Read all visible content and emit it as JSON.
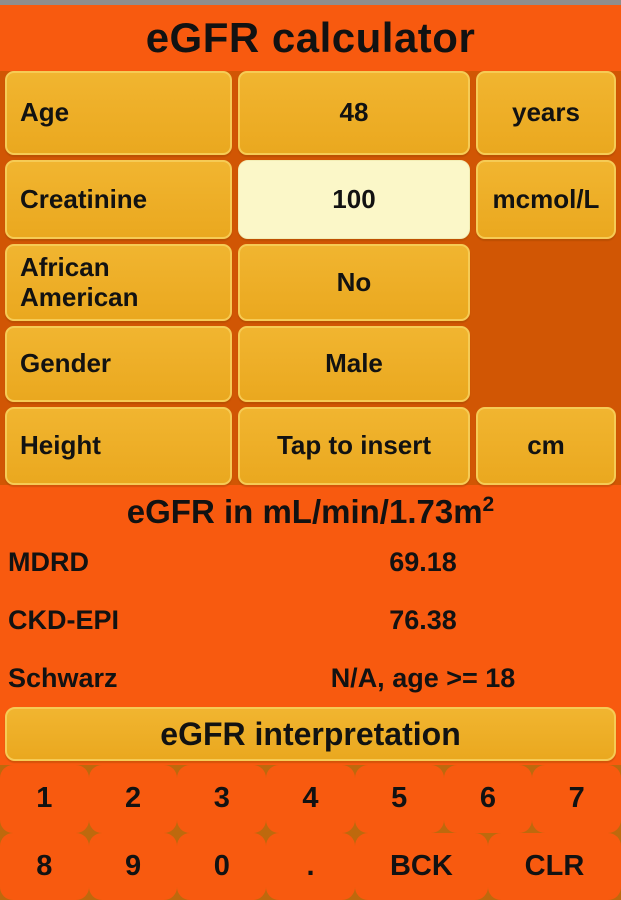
{
  "header": {
    "title": "eGFR calculator"
  },
  "colors": {
    "page_background": "#F85A0F",
    "grid_backdrop": "#D15604",
    "button_amber": "#EEAE25",
    "button_border": "#F6CB55",
    "input_cream": "#FBF7C8",
    "keypad_gap": "#BE690D",
    "status_bar": "#8E8E8E",
    "text": "#121212"
  },
  "form": {
    "rows": [
      {
        "label": "Age",
        "value": "48",
        "unit": "years"
      },
      {
        "label": "Creatinine",
        "value": "100",
        "unit": "mcmol/L"
      },
      {
        "label": "African American",
        "value": "No",
        "unit": ""
      },
      {
        "label": "Gender",
        "value": "Male",
        "unit": ""
      },
      {
        "label": "Height",
        "value": "Tap to insert",
        "unit": "cm"
      }
    ]
  },
  "results": {
    "heading_base": "eGFR in mL/min/1.73m",
    "heading_sup": "2",
    "items": [
      {
        "label": "MDRD",
        "value": "69.18"
      },
      {
        "label": "CKD-EPI",
        "value": "76.38"
      },
      {
        "label": "Schwarz",
        "value": "N/A, age >= 18"
      }
    ]
  },
  "interpretation_button": {
    "label": "eGFR interpretation"
  },
  "keypad": {
    "row1": [
      "1",
      "2",
      "3",
      "4",
      "5",
      "6",
      "7"
    ],
    "row2": [
      "8",
      "9",
      "0",
      ".",
      "BCK",
      "CLR"
    ]
  }
}
